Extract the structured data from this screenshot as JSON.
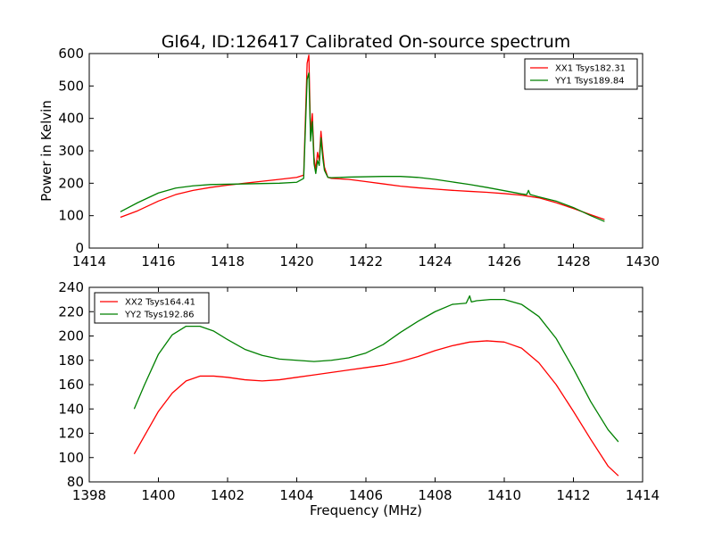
{
  "figure": {
    "title": "Gl64, ID:126417 Calibrated On-source spectrum"
  },
  "chart_data": [
    {
      "type": "line",
      "title": "Gl64, ID:126417 Calibrated On-source spectrum",
      "xlabel": "",
      "ylabel": "Power in Kelvin",
      "xlim": [
        1414,
        1430
      ],
      "ylim": [
        0,
        600
      ],
      "xticks": [
        1414,
        1416,
        1418,
        1420,
        1422,
        1424,
        1426,
        1428,
        1430
      ],
      "yticks": [
        0,
        100,
        200,
        300,
        400,
        500,
        600
      ],
      "grid": false,
      "legend_position": "top-right",
      "series": [
        {
          "name": "XX1 Tsys182.31",
          "color": "#ff0000",
          "x": [
            1414.9,
            1415.4,
            1416.0,
            1416.5,
            1417.0,
            1417.5,
            1418.0,
            1418.5,
            1419.0,
            1419.5,
            1420.0,
            1420.2,
            1420.3,
            1420.35,
            1420.4,
            1420.45,
            1420.5,
            1420.55,
            1420.6,
            1420.65,
            1420.7,
            1420.75,
            1420.8,
            1420.9,
            1421.0,
            1421.5,
            1422.0,
            1422.5,
            1423.0,
            1423.5,
            1424.0,
            1424.5,
            1425.0,
            1425.5,
            1426.0,
            1426.5,
            1427.0,
            1427.5,
            1428.0,
            1428.5,
            1428.9
          ],
          "values": [
            95,
            115,
            145,
            165,
            178,
            187,
            194,
            200,
            206,
            212,
            218,
            225,
            570,
            595,
            350,
            415,
            280,
            240,
            295,
            270,
            360,
            300,
            250,
            218,
            215,
            212,
            205,
            198,
            191,
            186,
            182,
            178,
            175,
            172,
            168,
            163,
            155,
            140,
            122,
            103,
            88
          ]
        },
        {
          "name": "YY1 Tsys189.84",
          "color": "#008000",
          "x": [
            1414.9,
            1415.4,
            1416.0,
            1416.5,
            1417.0,
            1417.5,
            1418.0,
            1418.5,
            1419.0,
            1419.5,
            1420.0,
            1420.2,
            1420.3,
            1420.35,
            1420.4,
            1420.45,
            1420.5,
            1420.55,
            1420.6,
            1420.65,
            1420.7,
            1420.75,
            1420.8,
            1420.9,
            1421.0,
            1421.5,
            1422.0,
            1422.5,
            1423.0,
            1423.5,
            1424.0,
            1424.5,
            1425.0,
            1425.5,
            1426.0,
            1426.5,
            1426.65,
            1426.7,
            1426.75,
            1427.0,
            1427.5,
            1428.0,
            1428.5,
            1428.9
          ],
          "values": [
            112,
            140,
            170,
            185,
            192,
            196,
            197,
            198,
            199,
            200,
            203,
            215,
            520,
            540,
            330,
            390,
            260,
            230,
            270,
            255,
            340,
            280,
            240,
            218,
            217,
            219,
            220,
            221,
            221,
            218,
            212,
            204,
            196,
            187,
            177,
            167,
            165,
            178,
            165,
            158,
            145,
            125,
            100,
            82
          ]
        }
      ]
    },
    {
      "type": "line",
      "title": "",
      "xlabel": "Frequency (MHz)",
      "ylabel": "",
      "xlim": [
        1398,
        1414
      ],
      "ylim": [
        80,
        240
      ],
      "xticks": [
        1398,
        1400,
        1402,
        1404,
        1406,
        1408,
        1410,
        1412,
        1414
      ],
      "yticks": [
        80,
        100,
        120,
        140,
        160,
        180,
        200,
        220,
        240
      ],
      "grid": false,
      "legend_position": "top-left",
      "series": [
        {
          "name": "XX2 Tsys164.41",
          "color": "#ff0000",
          "x": [
            1399.3,
            1399.6,
            1400.0,
            1400.4,
            1400.8,
            1401.2,
            1401.6,
            1402.0,
            1402.5,
            1403.0,
            1403.5,
            1404.0,
            1404.5,
            1405.0,
            1405.5,
            1406.0,
            1406.5,
            1407.0,
            1407.5,
            1408.0,
            1408.5,
            1409.0,
            1409.5,
            1410.0,
            1410.5,
            1411.0,
            1411.5,
            1412.0,
            1412.5,
            1413.0,
            1413.3
          ],
          "values": [
            103,
            118,
            138,
            153,
            163,
            167,
            167,
            166,
            164,
            163,
            164,
            166,
            168,
            170,
            172,
            174,
            176,
            179,
            183,
            188,
            192,
            195,
            196,
            195,
            190,
            178,
            160,
            138,
            115,
            93,
            85
          ]
        },
        {
          "name": "YY2 Tsys192.86",
          "color": "#008000",
          "x": [
            1399.3,
            1399.6,
            1400.0,
            1400.4,
            1400.8,
            1401.2,
            1401.6,
            1402.0,
            1402.5,
            1403.0,
            1403.5,
            1404.0,
            1404.5,
            1405.0,
            1405.5,
            1406.0,
            1406.5,
            1407.0,
            1407.5,
            1408.0,
            1408.5,
            1408.9,
            1409.0,
            1409.05,
            1409.2,
            1409.6,
            1410.0,
            1410.5,
            1411.0,
            1411.5,
            1412.0,
            1412.5,
            1413.0,
            1413.3
          ],
          "values": [
            140,
            160,
            185,
            201,
            208,
            208,
            204,
            197,
            189,
            184,
            181,
            180,
            179,
            180,
            182,
            186,
            193,
            203,
            212,
            220,
            226,
            227,
            233,
            228,
            229,
            230,
            230,
            226,
            216,
            198,
            173,
            146,
            123,
            113
          ]
        }
      ]
    }
  ]
}
